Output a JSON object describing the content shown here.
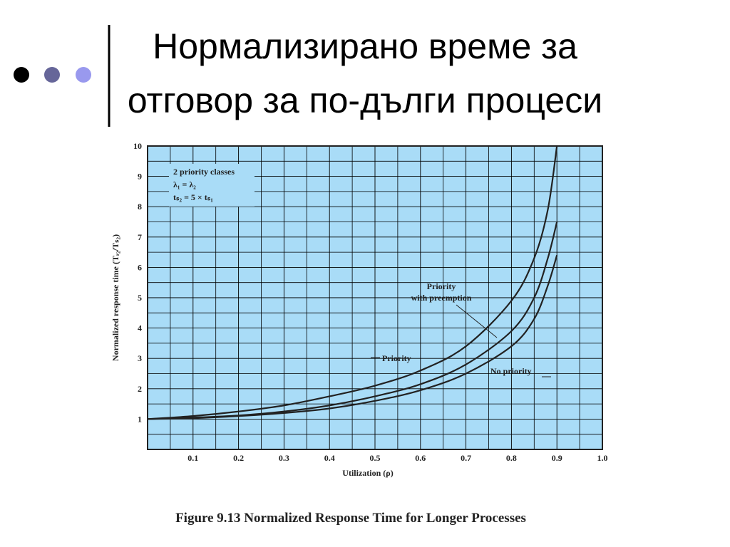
{
  "slide_title": [
    "Нормализирано време за",
    "отговор за по-дълги процеси"
  ],
  "chart_data": {
    "type": "line",
    "caption": "Figure 9.13 Normalized Response Time for Longer Processes",
    "x_label": "Utilization (ρ)",
    "y_label": "Normalized response time (Tᵣ₂/Tₛ₂)",
    "annotation": [
      "2 priority classes",
      "λ₁ = λ₂",
      "tₛ₂ = 5 × tₛ₁"
    ],
    "x": [
      0,
      0.1,
      0.2,
      0.3,
      0.4,
      0.5,
      0.6,
      0.7,
      0.8,
      0.85,
      0.88,
      0.9
    ],
    "series": [
      {
        "name": "Priority",
        "color": "#222222",
        "values": [
          1,
          1.1,
          1.25,
          1.45,
          1.75,
          2.1,
          2.6,
          3.4,
          4.9,
          6.3,
          7.9,
          10
        ]
      },
      {
        "name": "Priority with preemption",
        "color": "#222222",
        "values": [
          1,
          1.05,
          1.12,
          1.25,
          1.45,
          1.75,
          2.15,
          2.8,
          3.9,
          5,
          6.3,
          7.5
        ]
      },
      {
        "name": "No priority",
        "color": "#222222",
        "values": [
          1,
          1.03,
          1.1,
          1.2,
          1.35,
          1.6,
          1.95,
          2.5,
          3.4,
          4.3,
          5.4,
          6.4
        ]
      }
    ],
    "xlim": [
      0,
      1
    ],
    "xticks": [
      0.1,
      0.2,
      0.3,
      0.4,
      0.5,
      0.6,
      0.7,
      0.8,
      0.9,
      {
        "value": 1,
        "label": "1.0"
      }
    ],
    "ylim": [
      0,
      10
    ],
    "yticks": [
      1,
      2,
      3,
      4,
      5,
      6,
      7,
      8,
      9,
      10
    ],
    "grid": true
  }
}
